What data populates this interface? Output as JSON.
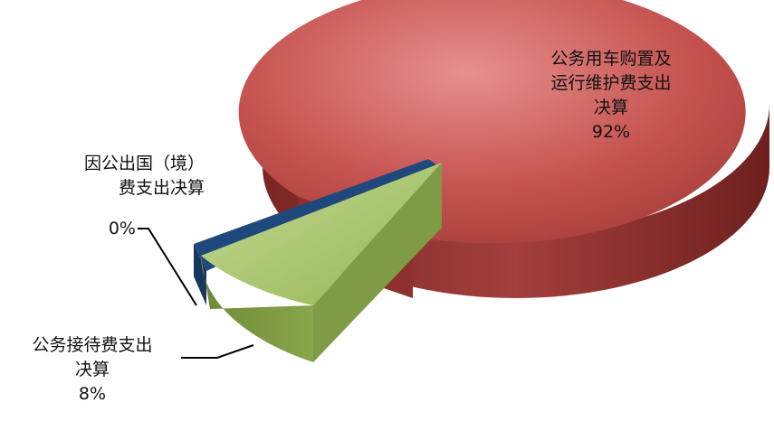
{
  "chart_data": {
    "type": "pie",
    "style": "3d-exploded",
    "categories": [
      "公务用车购置及运行维护费支出决算",
      "公务接待费支出决算",
      "因公出国（境）费支出决算"
    ],
    "values": [
      92,
      8,
      0.4
    ],
    "colors": [
      "#C0504D",
      "#9BBB59",
      "#1F497D"
    ],
    "labels": [
      {
        "lines": [
          "公务用车购置及",
          "运行维护费支出",
          "决算"
        ],
        "percent": "92%"
      },
      {
        "lines": [
          "公务接待费支出",
          "决算"
        ],
        "percent": "8%"
      },
      {
        "lines": [
          "因公出国（境）",
          "费支出决算"
        ],
        "percent": "0%"
      }
    ]
  }
}
